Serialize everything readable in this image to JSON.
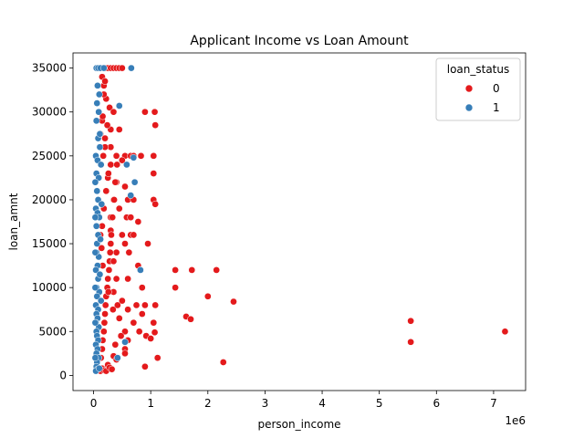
{
  "chart_data": {
    "type": "scatter",
    "title": "Applicant Income vs Loan Amount",
    "xlabel": "person_income",
    "ylabel": "loan_amnt",
    "x_offset_text": "1e6",
    "xlim": [
      -0.36,
      7.56
    ],
    "ylim": [
      -1725,
      36725
    ],
    "x_ticks": [
      0,
      1,
      2,
      3,
      4,
      5,
      6,
      7
    ],
    "x_tick_labels": [
      "0",
      "1",
      "2",
      "3",
      "4",
      "5",
      "6",
      "7"
    ],
    "y_ticks": [
      0,
      5000,
      10000,
      15000,
      20000,
      25000,
      30000,
      35000
    ],
    "y_tick_labels": [
      "0",
      "5000",
      "10000",
      "15000",
      "20000",
      "25000",
      "30000",
      "35000"
    ],
    "grid": false,
    "legend": {
      "title": "loan_status",
      "placement": "top-right",
      "entries": [
        {
          "label": "0",
          "color": "#e41a1c"
        },
        {
          "label": "1",
          "color": "#377eb8"
        }
      ]
    },
    "series": [
      {
        "name": "0",
        "color": "#e41a1c",
        "points": [
          [
            0.2,
            35000
          ],
          [
            0.25,
            35000
          ],
          [
            0.3,
            35000
          ],
          [
            0.35,
            35000
          ],
          [
            0.4,
            35000
          ],
          [
            0.45,
            35000
          ],
          [
            0.5,
            35000
          ],
          [
            0.15,
            34000
          ],
          [
            0.18,
            33000
          ],
          [
            0.22,
            31500
          ],
          [
            0.28,
            30500
          ],
          [
            0.35,
            30000
          ],
          [
            0.9,
            30000
          ],
          [
            1.07,
            30000
          ],
          [
            0.15,
            29000
          ],
          [
            0.3,
            28000
          ],
          [
            0.45,
            28000
          ],
          [
            1.08,
            28500
          ],
          [
            0.2,
            27000
          ],
          [
            0.3,
            26000
          ],
          [
            0.4,
            25000
          ],
          [
            0.55,
            25000
          ],
          [
            0.65,
            25000
          ],
          [
            0.7,
            25000
          ],
          [
            0.83,
            25000
          ],
          [
            1.05,
            25000
          ],
          [
            0.5,
            24500
          ],
          [
            1.05,
            23000
          ],
          [
            0.25,
            22500
          ],
          [
            0.4,
            22000
          ],
          [
            0.55,
            21500
          ],
          [
            0.35,
            20000
          ],
          [
            0.6,
            20000
          ],
          [
            0.7,
            20000
          ],
          [
            1.05,
            20000
          ],
          [
            1.08,
            19500
          ],
          [
            0.45,
            19000
          ],
          [
            0.3,
            18000
          ],
          [
            0.58,
            18000
          ],
          [
            0.65,
            18000
          ],
          [
            0.78,
            17500
          ],
          [
            0.3,
            16500
          ],
          [
            0.5,
            16000
          ],
          [
            0.65,
            16000
          ],
          [
            0.7,
            16000
          ],
          [
            0.55,
            15000
          ],
          [
            0.95,
            15000
          ],
          [
            0.4,
            14000
          ],
          [
            0.62,
            14000
          ],
          [
            0.78,
            12500
          ],
          [
            0.82,
            12000
          ],
          [
            1.43,
            12000
          ],
          [
            1.72,
            12000
          ],
          [
            2.15,
            12000
          ],
          [
            0.6,
            11000
          ],
          [
            0.85,
            10000
          ],
          [
            1.43,
            10000
          ],
          [
            0.35,
            9500
          ],
          [
            2.0,
            9000
          ],
          [
            0.5,
            8500
          ],
          [
            0.75,
            8000
          ],
          [
            0.9,
            8000
          ],
          [
            1.08,
            8000
          ],
          [
            2.45,
            8400
          ],
          [
            0.6,
            7500
          ],
          [
            0.85,
            7000
          ],
          [
            1.62,
            6700
          ],
          [
            1.7,
            6400
          ],
          [
            0.7,
            6000
          ],
          [
            1.05,
            6000
          ],
          [
            5.55,
            6200
          ],
          [
            0.55,
            5000
          ],
          [
            0.8,
            5000
          ],
          [
            1.07,
            4900
          ],
          [
            0.92,
            4500
          ],
          [
            1.0,
            4200
          ],
          [
            0.6,
            4000
          ],
          [
            5.55,
            3800
          ],
          [
            7.2,
            5000
          ],
          [
            0.55,
            3000
          ],
          [
            0.55,
            2500
          ],
          [
            1.12,
            2000
          ],
          [
            0.35,
            2200
          ],
          [
            0.9,
            1000
          ],
          [
            2.27,
            1500
          ],
          [
            0.4,
            1800
          ],
          [
            0.25,
            1200
          ],
          [
            0.12,
            500
          ],
          [
            0.15,
            800
          ],
          [
            0.18,
            600
          ],
          [
            0.22,
            500
          ],
          [
            0.28,
            900
          ],
          [
            0.32,
            700
          ],
          [
            0.15,
            3000
          ],
          [
            0.18,
            5000
          ],
          [
            0.2,
            7000
          ],
          [
            0.22,
            9000
          ],
          [
            0.25,
            11000
          ],
          [
            0.28,
            13000
          ],
          [
            0.3,
            15000
          ],
          [
            0.15,
            17000
          ],
          [
            0.18,
            19000
          ],
          [
            0.22,
            21000
          ],
          [
            0.26,
            23000
          ],
          [
            0.2,
            26000
          ],
          [
            0.12,
            27500
          ],
          [
            0.16,
            29500
          ],
          [
            0.18,
            32000
          ],
          [
            0.2,
            33500
          ],
          [
            0.24,
            28500
          ],
          [
            0.3,
            24000
          ],
          [
            0.35,
            13000
          ],
          [
            0.4,
            11000
          ],
          [
            0.42,
            8000
          ],
          [
            0.45,
            6500
          ],
          [
            0.48,
            4500
          ],
          [
            0.38,
            3500
          ],
          [
            0.13,
            2000
          ],
          [
            0.16,
            4000
          ],
          [
            0.19,
            6000
          ],
          [
            0.21,
            8000
          ],
          [
            0.24,
            10000
          ],
          [
            0.27,
            12000
          ],
          [
            0.29,
            14000
          ],
          [
            0.31,
            16000
          ],
          [
            0.33,
            18000
          ],
          [
            0.36,
            20000
          ],
          [
            0.38,
            22000
          ],
          [
            0.41,
            24000
          ],
          [
            0.17,
            25000
          ],
          [
            0.12,
            16000
          ],
          [
            0.14,
            14500
          ],
          [
            0.16,
            12500
          ],
          [
            0.26,
            9500
          ],
          [
            0.34,
            7500
          ]
        ]
      },
      {
        "name": "1",
        "color": "#377eb8",
        "points": [
          [
            0.05,
            35000
          ],
          [
            0.08,
            35000
          ],
          [
            0.12,
            35000
          ],
          [
            0.18,
            35000
          ],
          [
            0.66,
            35000
          ],
          [
            0.07,
            33000
          ],
          [
            0.1,
            32000
          ],
          [
            0.45,
            30700
          ],
          [
            0.06,
            31000
          ],
          [
            0.09,
            30000
          ],
          [
            0.05,
            29000
          ],
          [
            0.08,
            27000
          ],
          [
            0.11,
            26000
          ],
          [
            0.04,
            25000
          ],
          [
            0.07,
            24500
          ],
          [
            0.7,
            24800
          ],
          [
            0.58,
            24000
          ],
          [
            0.05,
            23000
          ],
          [
            0.09,
            22500
          ],
          [
            0.72,
            22000
          ],
          [
            0.06,
            21000
          ],
          [
            0.65,
            20500
          ],
          [
            0.08,
            20000
          ],
          [
            0.04,
            19000
          ],
          [
            0.07,
            18500
          ],
          [
            0.1,
            18000
          ],
          [
            0.05,
            17000
          ],
          [
            0.08,
            16000
          ],
          [
            0.06,
            15000
          ],
          [
            0.05,
            14000
          ],
          [
            0.09,
            13500
          ],
          [
            0.07,
            12500
          ],
          [
            0.82,
            12000
          ],
          [
            0.04,
            12000
          ],
          [
            0.08,
            11000
          ],
          [
            0.05,
            10000
          ],
          [
            0.1,
            9500
          ],
          [
            0.06,
            9000
          ],
          [
            0.04,
            8000
          ],
          [
            0.08,
            7500
          ],
          [
            0.05,
            7000
          ],
          [
            0.07,
            6500
          ],
          [
            0.04,
            6000
          ],
          [
            0.09,
            5500
          ],
          [
            0.05,
            5000
          ],
          [
            0.06,
            4500
          ],
          [
            0.08,
            4000
          ],
          [
            0.55,
            3800
          ],
          [
            0.04,
            3500
          ],
          [
            0.07,
            3000
          ],
          [
            0.05,
            2500
          ],
          [
            0.09,
            2000
          ],
          [
            0.42,
            2000
          ],
          [
            0.06,
            1500
          ],
          [
            0.05,
            1000
          ],
          [
            0.07,
            700
          ],
          [
            0.04,
            500
          ],
          [
            0.1,
            800
          ],
          [
            0.03,
            2000
          ],
          [
            0.03,
            6000
          ],
          [
            0.03,
            10000
          ],
          [
            0.03,
            14000
          ],
          [
            0.03,
            18000
          ],
          [
            0.03,
            22000
          ],
          [
            0.11,
            27500
          ],
          [
            0.13,
            24000
          ],
          [
            0.14,
            19500
          ],
          [
            0.12,
            15500
          ],
          [
            0.11,
            11500
          ],
          [
            0.13,
            8500
          ]
        ]
      }
    ]
  }
}
